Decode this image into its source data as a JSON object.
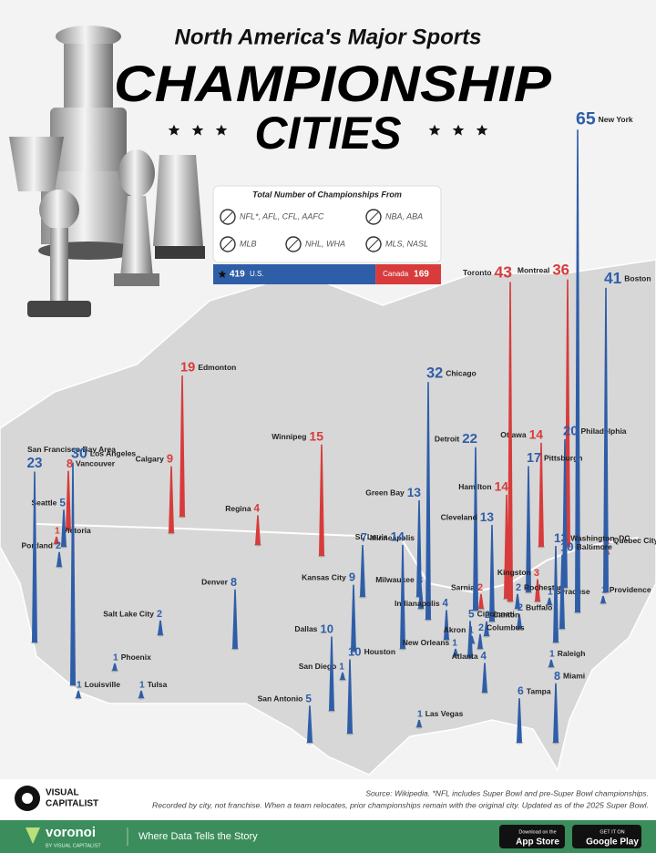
{
  "header": {
    "subtitle": "North America's Major Sports",
    "title_line1": "CHAMPIONSHIP",
    "title_line2": "CITIES"
  },
  "legend": {
    "title": "Total Number of Championships From",
    "leagues": [
      "NFL*, AFL, CFL, AAFC",
      "NBA, ABA",
      "MLB",
      "NHL, WHA",
      "MLS, NASL"
    ]
  },
  "totals": [
    {
      "label": "U.S.",
      "value": 419,
      "color": "#2f5ea8"
    },
    {
      "label": "Canada",
      "value": 169,
      "color": "#d83b3b"
    }
  ],
  "cities": [
    {
      "name": "New York",
      "value": 65,
      "country": "U.S."
    },
    {
      "name": "Toronto",
      "value": 43,
      "country": "Canada"
    },
    {
      "name": "Boston",
      "value": 41,
      "country": "U.S."
    },
    {
      "name": "Montreal",
      "value": 36,
      "country": "Canada"
    },
    {
      "name": "Chicago",
      "value": 32,
      "country": "U.S."
    },
    {
      "name": "Los Angeles",
      "value": 30,
      "country": "U.S."
    },
    {
      "name": "San Francisco Bay Area",
      "value": 23,
      "country": "U.S."
    },
    {
      "name": "Detroit",
      "value": 22,
      "country": "U.S."
    },
    {
      "name": "Philadelphia",
      "value": 20,
      "country": "U.S."
    },
    {
      "name": "Edmonton",
      "value": 19,
      "country": "Canada"
    },
    {
      "name": "Pittsburgh",
      "value": 17,
      "country": "U.S."
    },
    {
      "name": "Winnipeg",
      "value": 15,
      "country": "Canada"
    },
    {
      "name": "Ottawa",
      "value": 14,
      "country": "Canada"
    },
    {
      "name": "Hamilton",
      "value": 14,
      "country": "Canada"
    },
    {
      "name": "St. Louis",
      "value": 14,
      "country": "U.S."
    },
    {
      "name": "Green Bay",
      "value": 13,
      "country": "U.S."
    },
    {
      "name": "Cleveland",
      "value": 13,
      "country": "U.S."
    },
    {
      "name": "Washington, DC",
      "value": 13,
      "country": "U.S."
    },
    {
      "name": "Houston",
      "value": 10,
      "country": "U.S."
    },
    {
      "name": "Dallas",
      "value": 10,
      "country": "U.S."
    },
    {
      "name": "Baltimore",
      "value": 10,
      "country": "U.S."
    },
    {
      "name": "Calgary",
      "value": 9,
      "country": "Canada"
    },
    {
      "name": "Kansas City",
      "value": 9,
      "country": "U.S."
    },
    {
      "name": "Miami",
      "value": 8,
      "country": "U.S."
    },
    {
      "name": "Denver",
      "value": 8,
      "country": "U.S."
    },
    {
      "name": "Vancouver",
      "value": 8,
      "country": "Canada"
    },
    {
      "name": "Minneapolis",
      "value": 7,
      "country": "U.S."
    },
    {
      "name": "Tampa",
      "value": 6,
      "country": "U.S."
    },
    {
      "name": "Seattle",
      "value": 5,
      "country": "U.S."
    },
    {
      "name": "San Antonio",
      "value": 5,
      "country": "U.S."
    },
    {
      "name": "Cincinnati",
      "value": 5,
      "country": "U.S."
    },
    {
      "name": "Regina",
      "value": 4,
      "country": "Canada"
    },
    {
      "name": "Indianapolis",
      "value": 4,
      "country": "U.S."
    },
    {
      "name": "Atlanta",
      "value": 4,
      "country": "U.S."
    },
    {
      "name": "Milwaukee",
      "value": 3,
      "country": "U.S."
    },
    {
      "name": "Kingston",
      "value": 3,
      "country": "Canada"
    },
    {
      "name": "Sarnia",
      "value": 2,
      "country": "Canada"
    },
    {
      "name": "Rochester",
      "value": 2,
      "country": "U.S."
    },
    {
      "name": "Buffalo",
      "value": 2,
      "country": "U.S."
    },
    {
      "name": "Portland",
      "value": 2,
      "country": "U.S."
    },
    {
      "name": "Salt Lake City",
      "value": 2,
      "country": "U.S."
    },
    {
      "name": "Canton",
      "value": 2,
      "country": "U.S."
    },
    {
      "name": "Columbus",
      "value": 2,
      "country": "U.S."
    },
    {
      "name": "Akron",
      "value": 1,
      "country": "U.S."
    },
    {
      "name": "Syracuse",
      "value": 1,
      "country": "U.S."
    },
    {
      "name": "Providence",
      "value": 1,
      "country": "U.S."
    },
    {
      "name": "Quebec City",
      "value": 1,
      "country": "Canada"
    },
    {
      "name": "Victoria",
      "value": 1,
      "country": "Canada"
    },
    {
      "name": "Raleigh",
      "value": 1,
      "country": "U.S."
    },
    {
      "name": "Louisville",
      "value": 1,
      "country": "U.S."
    },
    {
      "name": "Tulsa",
      "value": 1,
      "country": "U.S."
    },
    {
      "name": "Las Vegas",
      "value": 1,
      "country": "U.S."
    },
    {
      "name": "San Diego",
      "value": 1,
      "country": "U.S."
    },
    {
      "name": "Phoenix",
      "value": 1,
      "country": "U.S."
    },
    {
      "name": "New Orleans",
      "value": 1,
      "country": "U.S."
    }
  ],
  "footer": {
    "source": "Source: Wikipedia. *NFL includes Super Bowl and pre-Super Bowl championships.",
    "note": "Recorded by city, not franchise. When a team relocates, prior championships remain with the original city. Updated as of the 2025 Super Bowl.",
    "brand": [
      "VISUAL",
      "CAPITALIST"
    ],
    "voronoi": "voronoi",
    "voronoi_by": "BY VISUAL CAPITALIST",
    "tagline": "Where Data Tells the Story",
    "app_store": [
      "Download on the",
      "App Store"
    ],
    "google_play": [
      "GET IT ON",
      "Google Play"
    ]
  }
}
